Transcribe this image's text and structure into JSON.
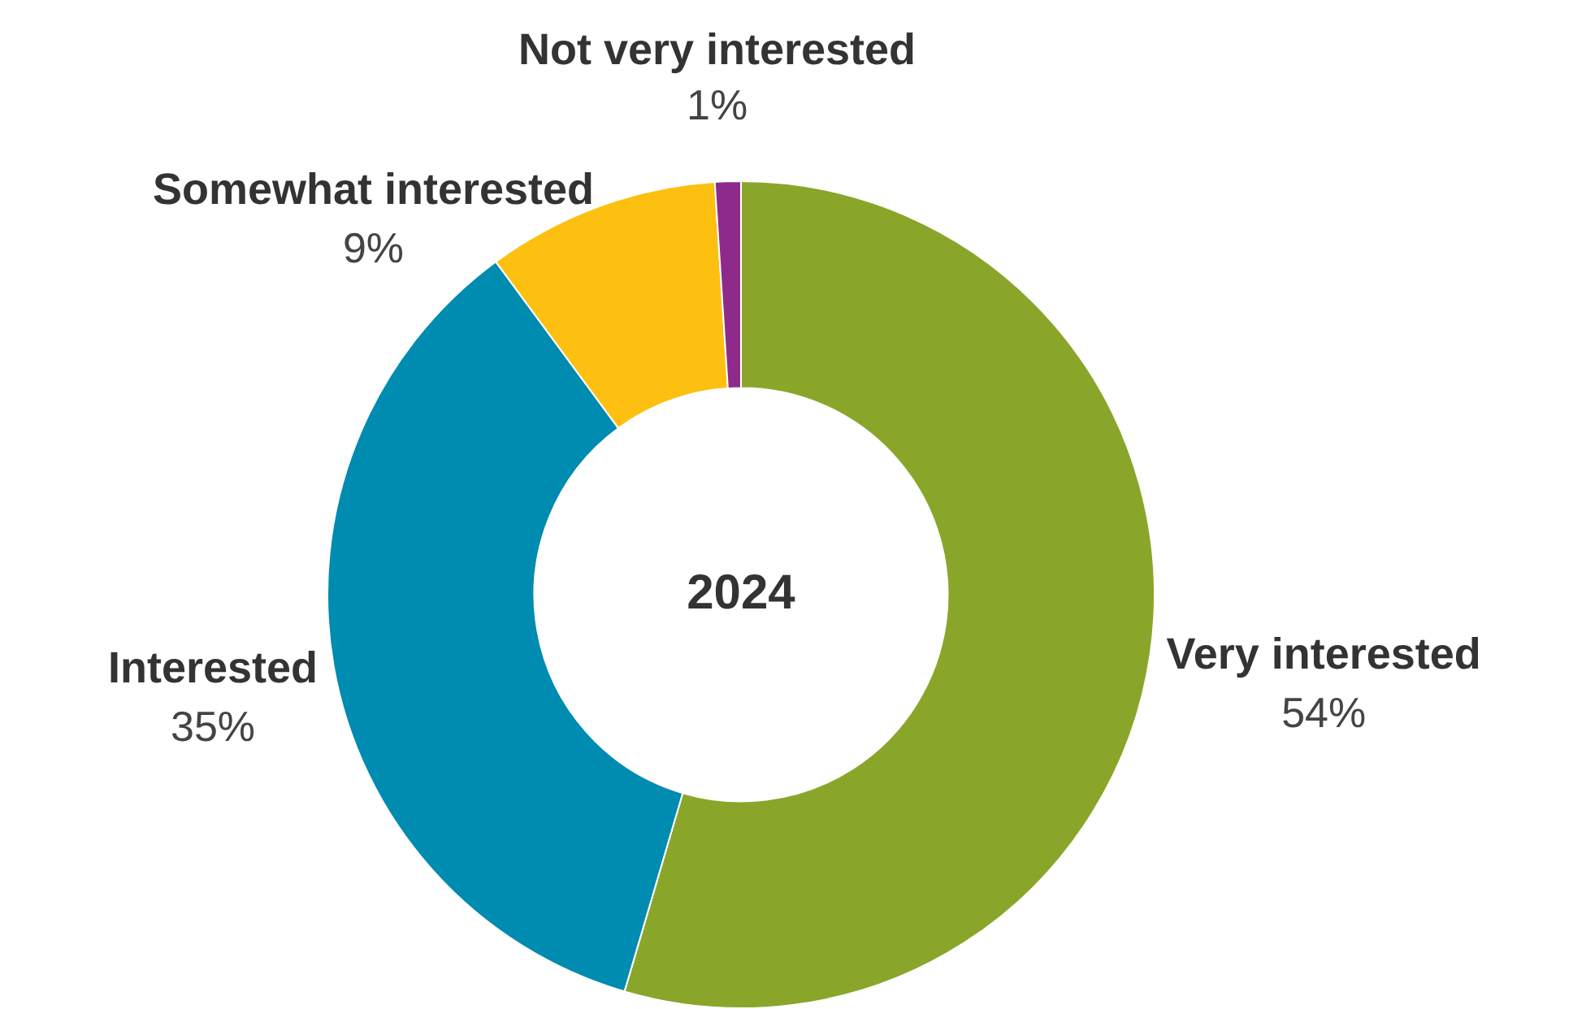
{
  "chart_data": {
    "type": "donut",
    "title": "2024",
    "categories": [
      "Very interested",
      "Interested",
      "Somewhat interested",
      "Not very interested"
    ],
    "values": [
      54,
      35,
      9,
      1
    ],
    "colors": [
      "#8aa62a",
      "#008bb0",
      "#fdc010",
      "#8e2b8a"
    ],
    "value_labels": [
      "54%",
      "35%",
      "9%",
      "1%"
    ],
    "legend": false
  }
}
